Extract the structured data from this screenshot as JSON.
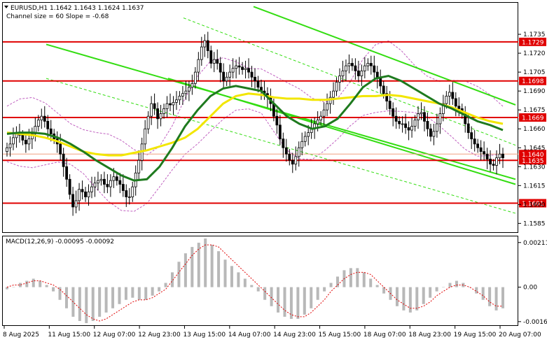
{
  "header": {
    "symbol_line": "EURUSD,H1  1.1642 1.1643 1.1624 1.1637",
    "channel_info": "Channel size = 60 Slope = -0.68"
  },
  "macd_label": "MACD(12,26,9) -0.00095 -0.00092",
  "colors": {
    "bull": "#ffffff",
    "bear": "#000000",
    "level": "#e00000",
    "channel": "#33dd11",
    "ma_fast": "#1e7a1e",
    "ma_slow": "#f2e600",
    "bands": "#c060c0",
    "macd_hist": "#b8b8b8",
    "macd_signal": "#e00000"
  },
  "chart_data": [
    {
      "type": "candlestick",
      "symbol": "EURUSD",
      "timeframe": "H1",
      "ohlc_last": {
        "open": 1.1642,
        "high": 1.1643,
        "low": 1.1624,
        "close": 1.1637
      },
      "ylim": [
        1.1578,
        1.176
      ],
      "y_ticks": [
        "1.1735",
        "1.1720",
        "1.1705",
        "1.1690",
        "1.1675",
        "1.1660",
        "1.1645",
        "1.1630",
        "1.1615",
        "1.1600",
        "1.1585"
      ],
      "x_ticks": [
        "8 Aug 2025",
        "11 Aug 15:00",
        "12 Aug 07:00",
        "12 Aug 23:00",
        "13 Aug 15:00",
        "14 Aug 07:00",
        "14 Aug 23:00",
        "15 Aug 15:00",
        "18 Aug 07:00",
        "18 Aug 23:00",
        "19 Aug 15:00",
        "20 Aug 07:00"
      ],
      "levels": [
        {
          "value": 1.1729,
          "label": "1.1729"
        },
        {
          "value": 1.1698,
          "label": "1.1698"
        },
        {
          "value": 1.1669,
          "label": "1.1669"
        },
        {
          "value": 1.1635,
          "label": "1.1635"
        },
        {
          "value": 1.1601,
          "label": "1.1601"
        }
      ],
      "current_price": {
        "value": 1.164,
        "label": "1.1640"
      },
      "close_series": [
        1.1645,
        1.1648,
        1.1653,
        1.1657,
        1.1655,
        1.1651,
        1.1648,
        1.1652,
        1.1656,
        1.1662,
        1.1667,
        1.167,
        1.1666,
        1.166,
        1.1656,
        1.1652,
        1.1648,
        1.164,
        1.163,
        1.162,
        1.1608,
        1.1598,
        1.1603,
        1.1612,
        1.161,
        1.1606,
        1.161,
        1.1614,
        1.1617,
        1.1619,
        1.162,
        1.1616,
        1.1614,
        1.1619,
        1.1622,
        1.1619,
        1.1616,
        1.1611,
        1.1606,
        1.1606,
        1.1614,
        1.1625,
        1.1635,
        1.1648,
        1.166,
        1.167,
        1.168,
        1.1676,
        1.1668,
        1.1672,
        1.1676,
        1.168,
        1.1679,
        1.1681,
        1.1683,
        1.1686,
        1.1688,
        1.169,
        1.1693,
        1.1696,
        1.1705,
        1.1715,
        1.1725,
        1.173,
        1.1722,
        1.1712,
        1.1715,
        1.1712,
        1.1705,
        1.1698,
        1.1701,
        1.1705,
        1.1708,
        1.171,
        1.1709,
        1.1707,
        1.1708,
        1.1705,
        1.1701,
        1.1698,
        1.1693,
        1.169,
        1.1688,
        1.1685,
        1.168,
        1.167,
        1.1663,
        1.1652,
        1.1645,
        1.164,
        1.1635,
        1.1632,
        1.1638,
        1.1645,
        1.165,
        1.1654,
        1.1657,
        1.166,
        1.1664,
        1.1667,
        1.167,
        1.1675,
        1.168,
        1.1685,
        1.169,
        1.1697,
        1.1702,
        1.1706,
        1.171,
        1.1712,
        1.171,
        1.1706,
        1.1702,
        1.1706,
        1.171,
        1.1712,
        1.171,
        1.1705,
        1.17,
        1.1694,
        1.1688,
        1.1682,
        1.1676,
        1.167,
        1.1666,
        1.1664,
        1.1664,
        1.1661,
        1.1659,
        1.1662,
        1.1667,
        1.1672,
        1.1673,
        1.1666,
        1.166,
        1.1654,
        1.1658,
        1.1664,
        1.1672,
        1.168,
        1.1686,
        1.1689,
        1.1684,
        1.1678,
        1.1676,
        1.1672,
        1.1664,
        1.1657,
        1.1652,
        1.1648,
        1.1645,
        1.1642,
        1.164,
        1.1636,
        1.1632,
        1.1631,
        1.1637,
        1.164,
        1.1637
      ],
      "ma_fast": [
        1.1656,
        1.1657,
        1.1657,
        1.1656,
        1.1653,
        1.1648,
        1.1642,
        1.1635,
        1.1629,
        1.1623,
        1.1619,
        1.162,
        1.163,
        1.1645,
        1.1662,
        1.1675,
        1.1686,
        1.1692,
        1.1694,
        1.1692,
        1.169,
        1.168,
        1.167,
        1.1664,
        1.166,
        1.1662,
        1.1668,
        1.168,
        1.1693,
        1.17,
        1.1702,
        1.1698,
        1.1692,
        1.1686,
        1.168,
        1.1676,
        1.1671,
        1.1666,
        1.1663,
        1.1659
      ],
      "ma_slow": [
        1.1657,
        1.1656,
        1.1655,
        1.1653,
        1.165,
        1.1646,
        1.1642,
        1.164,
        1.1639,
        1.1639,
        1.1641,
        1.1643,
        1.1646,
        1.1649,
        1.1653,
        1.166,
        1.167,
        1.168,
        1.1686,
        1.1688,
        1.1687,
        1.1685,
        1.1684,
        1.1684,
        1.1683,
        1.1683,
        1.1684,
        1.1685,
        1.1686,
        1.1686,
        1.1687,
        1.1686,
        1.1684,
        1.1682,
        1.168,
        1.1677,
        1.1673,
        1.1669,
        1.1666,
        1.1664
      ]
    },
    {
      "type": "bar",
      "name": "MACD(12,26,9)",
      "macd": -0.00095,
      "signal": -0.00092,
      "ylim": [
        -0.0018,
        0.0024
      ],
      "y_ticks": [
        "0.00211",
        "0.00",
        "-0.00163"
      ],
      "hist": [
        -0.0001,
        0.0,
        0.0002,
        0.0003,
        0.0004,
        0.0003,
        0.0001,
        -0.0002,
        -0.0006,
        -0.001,
        -0.0014,
        -0.0016,
        -0.0017,
        -0.0016,
        -0.0014,
        -0.0012,
        -0.001,
        -0.0008,
        -0.0006,
        -0.0005,
        -0.0006,
        -0.0006,
        -0.0004,
        -0.0002,
        0.0002,
        0.0007,
        0.0012,
        0.0016,
        0.0019,
        0.0021,
        0.0023,
        0.002,
        0.0017,
        0.0013,
        0.001,
        0.0007,
        0.0004,
        0.0001,
        -0.0002,
        -0.0006,
        -0.0009,
        -0.0012,
        -0.0014,
        -0.0015,
        -0.0015,
        -0.0013,
        -0.001,
        -0.0006,
        -0.0002,
        0.0002,
        0.0005,
        0.0008,
        0.0009,
        0.0009,
        0.0007,
        0.0004,
        0.0001,
        -0.0003,
        -0.0006,
        -0.0009,
        -0.0011,
        -0.0012,
        -0.0011,
        -0.0008,
        -0.0005,
        -0.0002,
        0.0,
        0.0002,
        0.0003,
        0.0002,
        0.0,
        -0.0003,
        -0.0006,
        -0.0009,
        -0.0011,
        -0.001
      ],
      "signal_series": [
        0.0,
        0.0001,
        0.0001,
        0.0002,
        0.0003,
        0.0003,
        0.0002,
        0.0001,
        -0.0001,
        -0.0004,
        -0.0007,
        -0.001,
        -0.0013,
        -0.0015,
        -0.0016,
        -0.0015,
        -0.0013,
        -0.0011,
        -0.0009,
        -0.0007,
        -0.0006,
        -0.0006,
        -0.0005,
        -0.0003,
        -0.0001,
        0.0003,
        0.0007,
        0.0011,
        0.0015,
        0.0018,
        0.002,
        0.002,
        0.0019,
        0.0016,
        0.0013,
        0.001,
        0.0007,
        0.0004,
        0.0001,
        -0.0002,
        -0.0005,
        -0.0008,
        -0.0011,
        -0.0013,
        -0.0014,
        -0.0014,
        -0.0012,
        -0.0009,
        -0.0006,
        -0.0002,
        0.0001,
        0.0004,
        0.0006,
        0.0007,
        0.0007,
        0.0006,
        0.0003,
        0.0,
        -0.0003,
        -0.0006,
        -0.0008,
        -0.001,
        -0.001,
        -0.0009,
        -0.0007,
        -0.0004,
        -0.0002,
        0.0,
        0.0001,
        0.0001,
        0.0,
        -0.0002,
        -0.0004,
        -0.0007,
        -0.0009,
        -0.0009
      ]
    }
  ]
}
